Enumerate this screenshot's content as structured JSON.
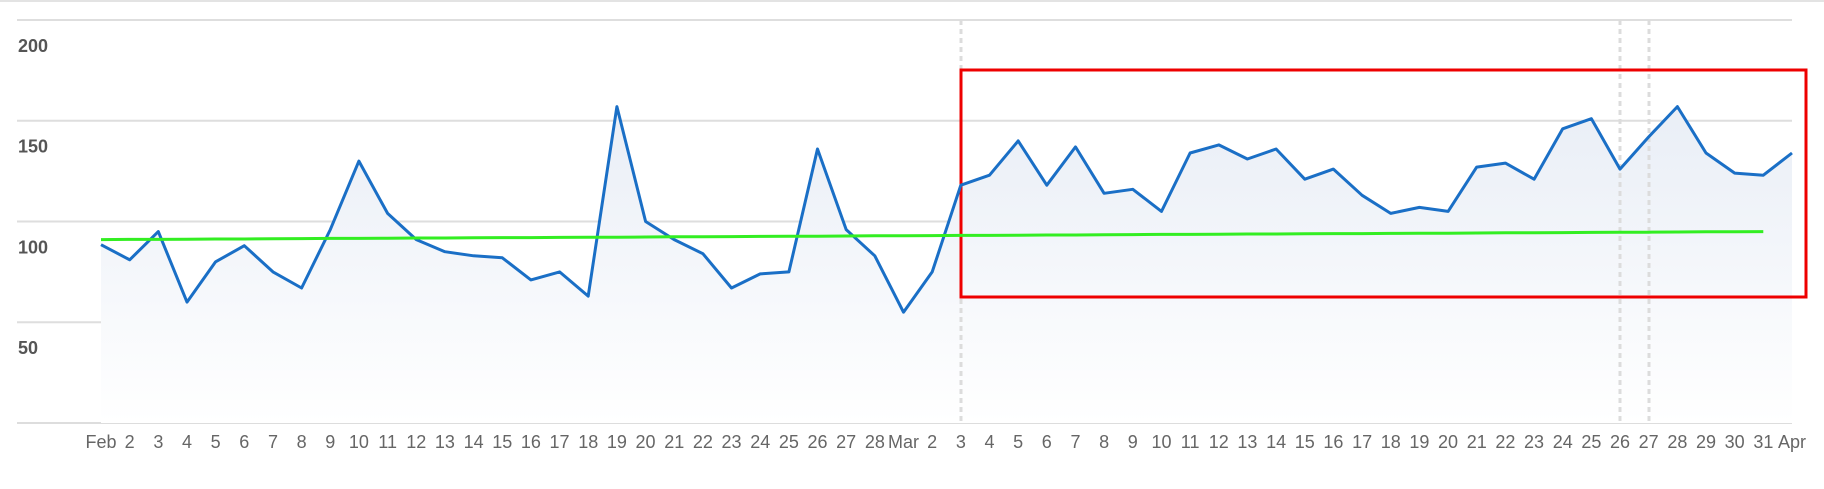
{
  "chart_data": {
    "type": "line",
    "categories": [
      "Feb",
      "2",
      "3",
      "4",
      "5",
      "6",
      "7",
      "8",
      "9",
      "10",
      "11",
      "12",
      "13",
      "14",
      "15",
      "16",
      "17",
      "18",
      "19",
      "20",
      "21",
      "22",
      "23",
      "24",
      "25",
      "26",
      "27",
      "28",
      "Mar",
      "2",
      "3",
      "4",
      "5",
      "6",
      "7",
      "8",
      "9",
      "10",
      "11",
      "12",
      "13",
      "14",
      "15",
      "16",
      "17",
      "18",
      "19",
      "20",
      "21",
      "22",
      "23",
      "24",
      "25",
      "26",
      "27",
      "28",
      "29",
      "30",
      "31",
      "Apr"
    ],
    "series": [
      {
        "color": "#1a6fc6",
        "values": [
          88.5,
          81,
          95,
          60,
          80,
          88,
          75,
          67,
          96,
          130,
          104,
          91,
          85,
          83,
          82,
          71,
          75,
          63,
          157,
          100,
          91,
          84,
          67,
          74,
          75,
          136,
          96,
          83,
          55,
          75,
          118,
          123,
          140,
          118,
          137,
          114,
          116,
          105,
          134,
          138,
          131,
          136,
          121,
          126,
          113,
          104,
          107,
          105,
          127,
          129,
          121,
          146,
          151,
          126,
          142,
          157,
          134,
          124,
          123,
          134
        ]
      },
      {
        "color": "#33ee22",
        "values": [
          91.0,
          91.1,
          91.1,
          91.2,
          91.3,
          91.3,
          91.4,
          91.5,
          91.6,
          91.6,
          91.7,
          91.8,
          91.8,
          91.9,
          92.0,
          92.0,
          92.1,
          92.2,
          92.2,
          92.3,
          92.4,
          92.4,
          92.5,
          92.6,
          92.7,
          92.7,
          92.8,
          92.9,
          92.9,
          93.0,
          93.1,
          93.1,
          93.2,
          93.3,
          93.3,
          93.4,
          93.5,
          93.6,
          93.6,
          93.7,
          93.8,
          93.8,
          93.9,
          94.0,
          94.0,
          94.1,
          94.2,
          94.2,
          94.3,
          94.4,
          94.4,
          94.5,
          94.6,
          94.7,
          94.7,
          94.8,
          94.9,
          94.9,
          95.0,
          null
        ]
      }
    ],
    "ylim": [
      0,
      200
    ],
    "yticks": [
      50,
      100,
      150,
      200
    ],
    "grid": true
  }
}
